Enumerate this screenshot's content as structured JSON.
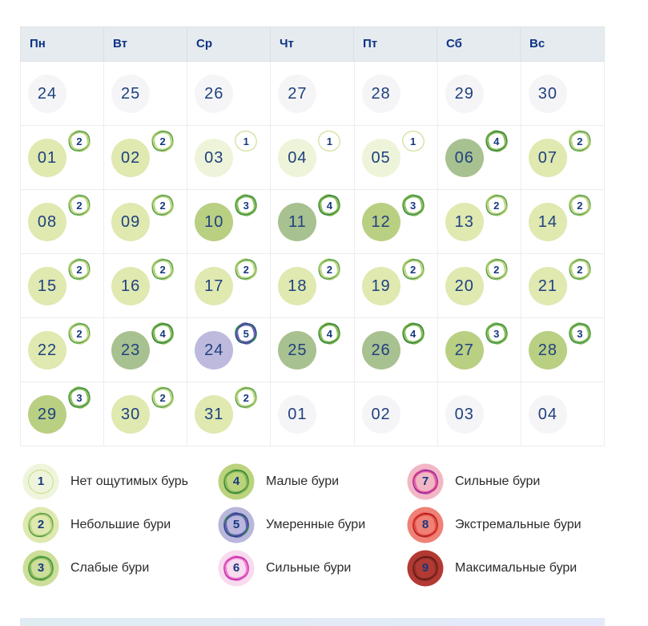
{
  "calendar": {
    "weekdays": [
      "Пн",
      "Вт",
      "Ср",
      "Чт",
      "Пт",
      "Сб",
      "Вс"
    ],
    "weeks": [
      [
        {
          "day": "24",
          "month": "other"
        },
        {
          "day": "25",
          "month": "other"
        },
        {
          "day": "26",
          "month": "other"
        },
        {
          "day": "27",
          "month": "other"
        },
        {
          "day": "28",
          "month": "other"
        },
        {
          "day": "29",
          "month": "other"
        },
        {
          "day": "30",
          "month": "other"
        }
      ],
      [
        {
          "day": "01",
          "level": 2
        },
        {
          "day": "02",
          "level": 2
        },
        {
          "day": "03",
          "level": 1
        },
        {
          "day": "04",
          "level": 1
        },
        {
          "day": "05",
          "level": 1
        },
        {
          "day": "06",
          "level": 4
        },
        {
          "day": "07",
          "level": 2
        }
      ],
      [
        {
          "day": "08",
          "level": 2
        },
        {
          "day": "09",
          "level": 2
        },
        {
          "day": "10",
          "level": 3
        },
        {
          "day": "11",
          "level": 4
        },
        {
          "day": "12",
          "level": 3
        },
        {
          "day": "13",
          "level": 2
        },
        {
          "day": "14",
          "level": 2
        }
      ],
      [
        {
          "day": "15",
          "level": 2
        },
        {
          "day": "16",
          "level": 2
        },
        {
          "day": "17",
          "level": 2
        },
        {
          "day": "18",
          "level": 2
        },
        {
          "day": "19",
          "level": 2
        },
        {
          "day": "20",
          "level": 2
        },
        {
          "day": "21",
          "level": 2
        }
      ],
      [
        {
          "day": "22",
          "level": 2
        },
        {
          "day": "23",
          "level": 4
        },
        {
          "day": "24",
          "level": 5
        },
        {
          "day": "25",
          "level": 4
        },
        {
          "day": "26",
          "level": 4
        },
        {
          "day": "27",
          "level": 3
        },
        {
          "day": "28",
          "level": 3
        }
      ],
      [
        {
          "day": "29",
          "level": 3
        },
        {
          "day": "30",
          "level": 2
        },
        {
          "day": "31",
          "level": 2
        },
        {
          "day": "01",
          "month": "other"
        },
        {
          "day": "02",
          "month": "other"
        },
        {
          "day": "03",
          "month": "other"
        },
        {
          "day": "04",
          "month": "other"
        }
      ]
    ]
  },
  "legend": {
    "columns": [
      [
        {
          "level": 1,
          "label": "Нет ощутимых бурь"
        },
        {
          "level": 2,
          "label": "Небольшие бури"
        },
        {
          "level": 3,
          "label": "Слабые бури"
        }
      ],
      [
        {
          "level": 4,
          "label": "Малые бури"
        },
        {
          "level": 5,
          "label": "Умеренные бури"
        },
        {
          "level": 6,
          "label": "Сильные бури"
        }
      ],
      [
        {
          "level": 7,
          "label": "Сильные бури"
        },
        {
          "level": 8,
          "label": "Экстремальные бури"
        },
        {
          "level": 9,
          "label": "Максимальные бури"
        }
      ]
    ]
  },
  "levels": {
    "1": {
      "legend_fill": "#eef5dc",
      "badge_rings": [
        "#cde096"
      ]
    },
    "2": {
      "legend_fill": "#dfe9af",
      "badge_rings": [
        "#a6cd6d",
        "#4e9547",
        "#c6dc8f"
      ]
    },
    "3": {
      "legend_fill": "#cdde9a",
      "badge_rings": [
        "#6aab45",
        "#3e8f47",
        "#8fc05e"
      ]
    },
    "4": {
      "legend_fill": "#bcd37e",
      "badge_rings": [
        "#6aab45",
        "#2f7d3a",
        "#8fc05e"
      ]
    },
    "5": {
      "legend_fill": "#b9b7dc",
      "badge_rings": [
        "#2f8a4f",
        "#31379a",
        "#6a62b5"
      ]
    },
    "6": {
      "legend_fill": "#f8dbee",
      "badge_rings": [
        "#e24fc0",
        "#c02ba8",
        "#f08ad6"
      ]
    },
    "7": {
      "legend_fill": "#f2b7c5",
      "badge_rings": [
        "#d4367c",
        "#8e2bb0",
        "#e86fa6"
      ]
    },
    "8": {
      "legend_fill": "#ef8176",
      "badge_rings": [
        "#d92f2f",
        "#a81f21",
        "#e8574a"
      ]
    },
    "9": {
      "legend_fill": "#b23a33",
      "badge_rings": [
        "#7e231e",
        "#5f1713",
        "#96352c"
      ]
    }
  },
  "colors": {
    "day_fill": {
      "1": "#edf4d9",
      "2": "#dfe9b0",
      "3": "#b9cf82",
      "4": "#a8c190",
      "5": "#bdbade"
    },
    "other_month_fill": "#f5f5f7",
    "header_bg": "#e6ebef",
    "header_text": "#0e3383",
    "day_text": "#20417f",
    "badge_number": "#17387f",
    "grid_border": "#ecedf0",
    "legend_text": "#2b2b2b",
    "bottom_strip_left": "#dfecf2",
    "bottom_strip_right": "#e4eafb"
  }
}
